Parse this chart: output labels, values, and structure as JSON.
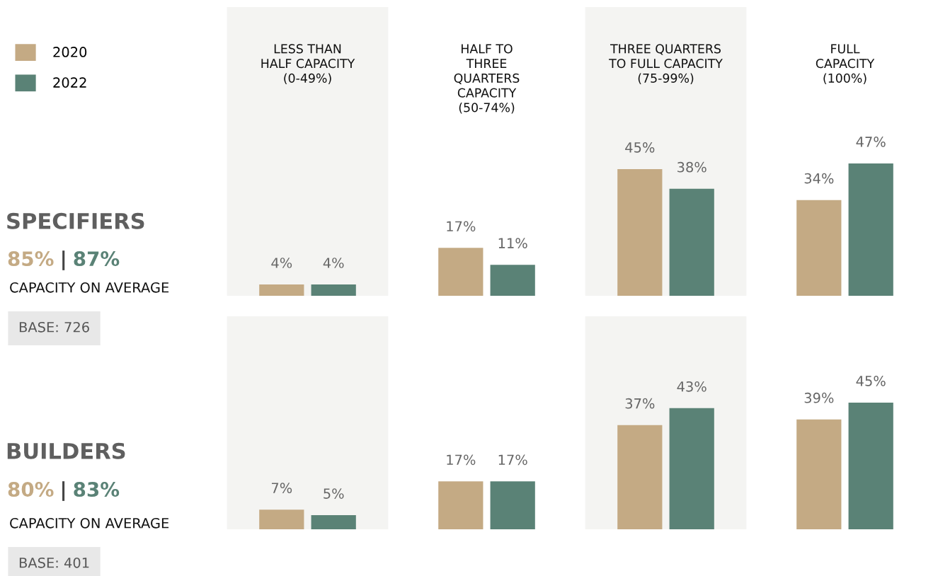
{
  "chart_data": [
    {
      "type": "bar",
      "title": "SPECIFIERS",
      "subtitle": "85% | 87%",
      "annotations": [
        "CAPACITY ON AVERAGE",
        "BASE: 726"
      ],
      "categories": [
        "LESS THAN\nHALF CAPACITY\n(0-49%)",
        "HALF TO\nTHREE\nQUARTERS\nCAPACITY\n(50-74%)",
        "THREE QUARTERS\nTO FULL CAPACITY\n(75-99%)",
        "FULL\nCAPACITY\n(100%)"
      ],
      "series": [
        {
          "name": "2020",
          "color": "#c4aa84",
          "values": [
            4,
            17,
            45,
            34
          ],
          "value_labels": [
            "4%",
            "17%",
            "45%",
            "34%"
          ]
        },
        {
          "name": "2022",
          "color": "#5a8276",
          "values": [
            4,
            11,
            38,
            47
          ],
          "value_labels": [
            "4%",
            "11%",
            "38%",
            "47%"
          ]
        }
      ],
      "bands": [
        {
          "axis": "x",
          "from": "LESS THAN\nHALF CAPACITY\n(0-49%)",
          "to": "LESS THAN\nHALF CAPACITY\n(0-49%)",
          "color": "#f4f4f2"
        },
        {
          "axis": "x",
          "from": "THREE QUARTERS\nTO FULL CAPACITY\n(75-99%)",
          "to": "THREE QUARTERS\nTO FULL CAPACITY\n(75-99%)",
          "color": "#f4f4f2"
        }
      ],
      "legend": "top left",
      "tick_labels": "x"
    },
    {
      "type": "bar",
      "title": "BUILDERS",
      "subtitle": "80% | 83%",
      "annotations": [
        "CAPACITY ON AVERAGE",
        "BASE: 401"
      ],
      "categories": [
        "LESS THAN\nHALF CAPACITY\n(0-49%)",
        "HALF TO\nTHREE\nQUARTERS\nCAPACITY\n(50-74%)",
        "THREE QUARTERS\nTO FULL CAPACITY\n(75-99%)",
        "FULL\nCAPACITY\n(100%)"
      ],
      "bands": [
        {
          "axis": "x",
          "from": "LESS THAN\nHALF CAPACITY\n(0-49%)",
          "to": "LESS THAN\nHALF CAPACITY\n(0-49%)",
          "color": "#f4f4f2"
        },
        {
          "axis": "x",
          "from": "THREE QUARTERS\nTO FULL CAPACITY\n(75-99%)",
          "to": "THREE QUARTERS\nTO FULL CAPACITY\n(75-99%)",
          "color": "#f4f4f2"
        }
      ],
      "series": [
        {
          "name": "2020",
          "color": "#c4aa84",
          "values": [
            7,
            17,
            37,
            39
          ],
          "value_labels": [
            "7%",
            "17%",
            "37%",
            "39%"
          ]
        },
        {
          "name": "2022",
          "color": "#5a8276",
          "values": [
            5,
            17,
            43,
            45
          ],
          "value_labels": [
            "5%",
            "17%",
            "43%",
            "45%"
          ]
        }
      ],
      "legend": false,
      "tick_labels": false
    }
  ]
}
